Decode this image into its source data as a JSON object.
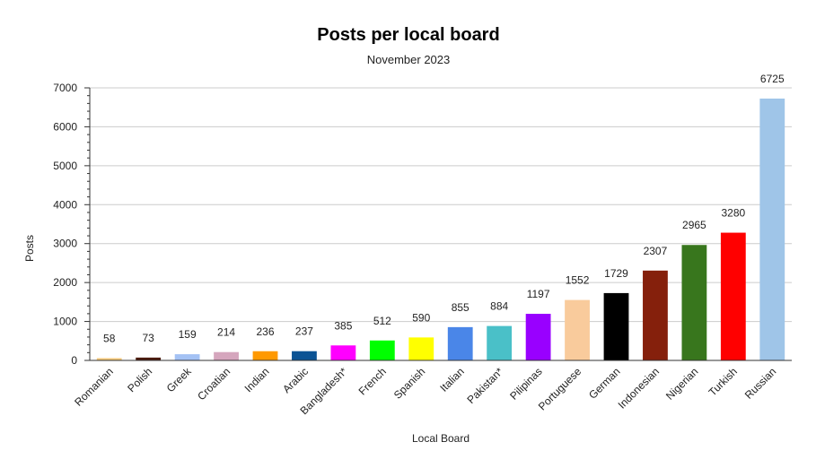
{
  "chart_data": {
    "type": "bar",
    "title": "Posts per local board",
    "subtitle": "November 2023",
    "xlabel": "Local Board",
    "ylabel": "Posts",
    "ylim": [
      0,
      7000
    ],
    "yticks": [
      0,
      1000,
      2000,
      3000,
      4000,
      5000,
      6000,
      7000
    ],
    "grid": true,
    "legend": "none",
    "categories": [
      "Romanian",
      "Polish",
      "Greek",
      "Croatian",
      "Indian",
      "Arabic",
      "Bangladesh*",
      "French",
      "Spanish",
      "Italian",
      "Pakistan*",
      "Pilipinas",
      "Portuguese",
      "German",
      "Indonesian",
      "Nigerian",
      "Turkish",
      "Russian"
    ],
    "values": [
      58,
      73,
      159,
      214,
      236,
      237,
      385,
      512,
      590,
      855,
      884,
      1197,
      1552,
      1729,
      2307,
      2965,
      3280,
      6725
    ],
    "colors": [
      "#f6c97b",
      "#4a1a0c",
      "#a4c2f4",
      "#d5a6bd",
      "#ff9900",
      "#0b5394",
      "#ff00ff",
      "#00ff00",
      "#ffff00",
      "#4a86e8",
      "#4ac0c8",
      "#9900ff",
      "#f9cb9c",
      "#000000",
      "#85200c",
      "#38761d",
      "#ff0000",
      "#9fc5e8"
    ]
  }
}
